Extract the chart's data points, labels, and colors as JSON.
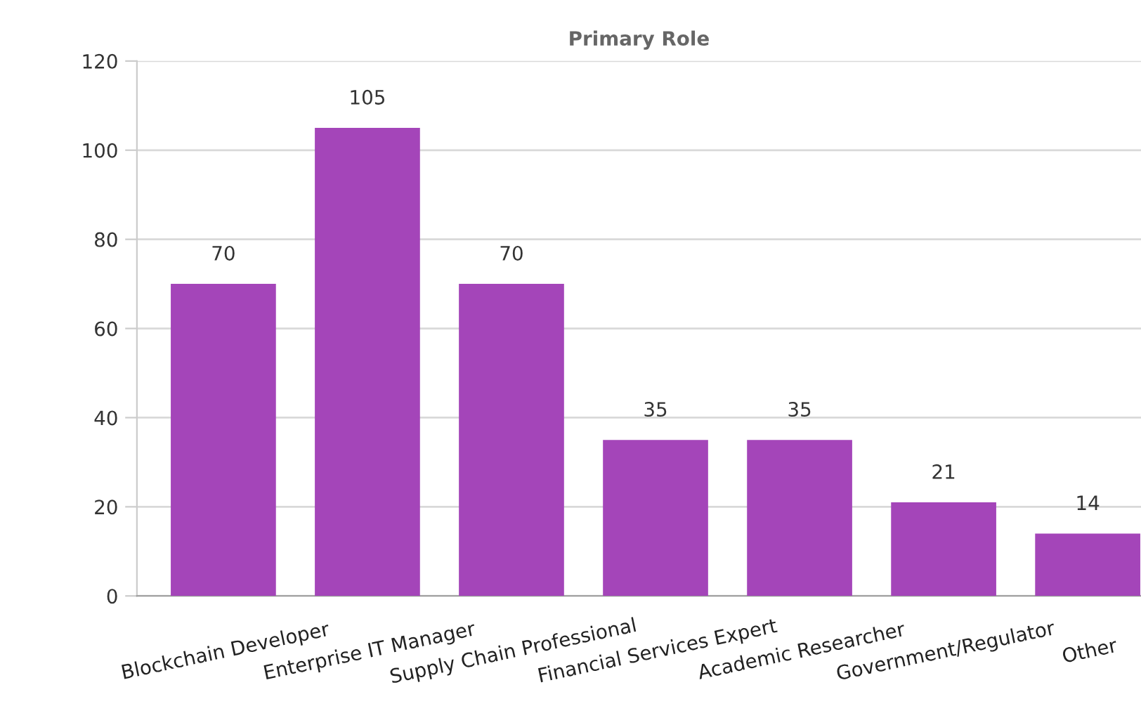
{
  "chart_data": {
    "type": "bar",
    "title": "Primary Role",
    "categories": [
      "Blockchain Developer",
      "Enterprise IT Manager",
      "Supply Chain Professional",
      "Financial Services Expert",
      "Academic Researcher",
      "Government/Regulator",
      "Other"
    ],
    "values": [
      70,
      105,
      70,
      35,
      35,
      21,
      14
    ],
    "color": "#a445b9",
    "ylim": [
      0,
      120
    ],
    "yticks": [
      0,
      20,
      40,
      60,
      80,
      100,
      120
    ],
    "grid": "y",
    "data_labels": true
  }
}
